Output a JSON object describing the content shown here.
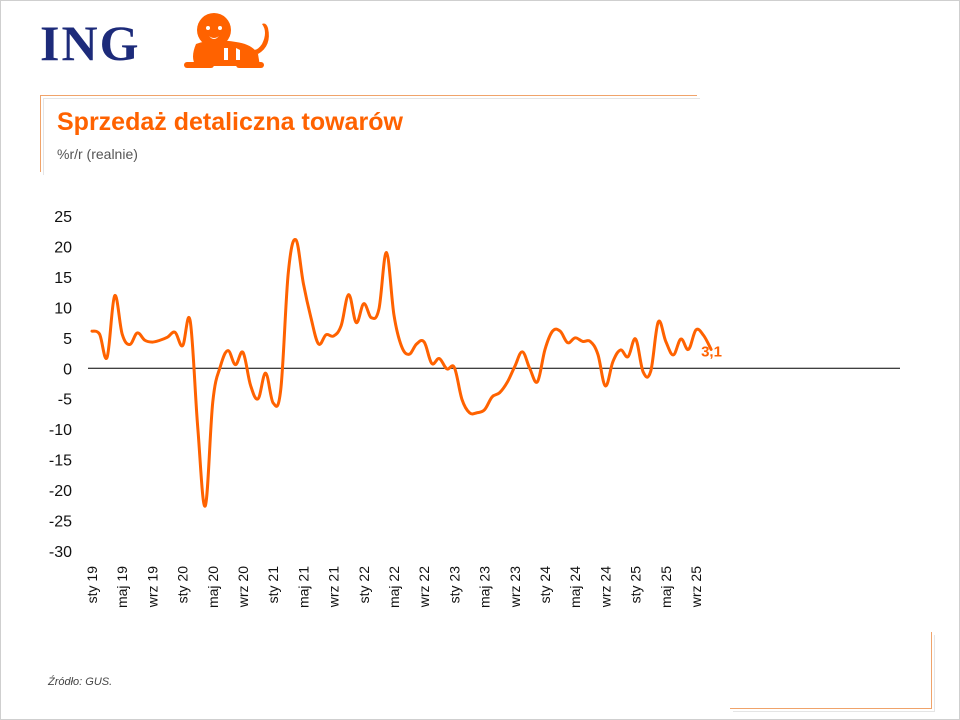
{
  "brand": {
    "logo_text": "ING",
    "logo_icon": "lion-icon",
    "accent": "#ff6200",
    "navy": "#1d2b7a"
  },
  "header": {
    "title": "Sprzedaż detaliczna towarów",
    "subtitle": "%r/r (realnie)"
  },
  "footer": {
    "source": "Źródło: GUS."
  },
  "chart_data": {
    "type": "line",
    "title": "Sprzedaż detaliczna towarów",
    "subtitle": "%r/r (realnie)",
    "xlabel": "",
    "ylabel": "",
    "ylim": [
      -30,
      25
    ],
    "yticks": [
      25,
      20,
      15,
      10,
      5,
      0,
      -5,
      -10,
      -15,
      -20,
      -25,
      -30
    ],
    "x_tick_labels": [
      "sty 19",
      "maj 19",
      "wrz 19",
      "sty 20",
      "maj 20",
      "wrz 20",
      "sty 21",
      "maj 21",
      "wrz 21",
      "sty 22",
      "maj 22",
      "wrz 22",
      "sty 23",
      "maj 23",
      "wrz 23",
      "sty 24",
      "maj 24",
      "wrz 24",
      "sty 25",
      "maj 25",
      "wrz 25"
    ],
    "grid": false,
    "legend": "none",
    "color": "#ff6200",
    "end_label": "3,1",
    "x": [
      "2019-01",
      "2019-02",
      "2019-03",
      "2019-04",
      "2019-05",
      "2019-06",
      "2019-07",
      "2019-08",
      "2019-09",
      "2019-10",
      "2019-11",
      "2019-12",
      "2020-01",
      "2020-02",
      "2020-03",
      "2020-04",
      "2020-05",
      "2020-06",
      "2020-07",
      "2020-08",
      "2020-09",
      "2020-10",
      "2020-11",
      "2020-12",
      "2021-01",
      "2021-02",
      "2021-03",
      "2021-04",
      "2021-05",
      "2021-06",
      "2021-07",
      "2021-08",
      "2021-09",
      "2021-10",
      "2021-11",
      "2021-12",
      "2022-01",
      "2022-02",
      "2022-03",
      "2022-04",
      "2022-05",
      "2022-06",
      "2022-07",
      "2022-08",
      "2022-09",
      "2022-10",
      "2022-11",
      "2022-12",
      "2023-01",
      "2023-02",
      "2023-03",
      "2023-04",
      "2023-05",
      "2023-06",
      "2023-07",
      "2023-08",
      "2023-09",
      "2023-10",
      "2023-11",
      "2023-12",
      "2024-01",
      "2024-02",
      "2024-03",
      "2024-04",
      "2024-05",
      "2024-06",
      "2024-07",
      "2024-08",
      "2024-09",
      "2024-10",
      "2024-11",
      "2024-12",
      "2025-01",
      "2025-02",
      "2025-03",
      "2025-04",
      "2025-05",
      "2025-06",
      "2025-07",
      "2025-08",
      "2025-09",
      "2025-10",
      "2025-11"
    ],
    "series": [
      {
        "values": [
          6.1,
          5.6,
          1.8,
          11.9,
          5.6,
          3.9,
          5.8,
          4.6,
          4.3,
          4.6,
          5.1,
          5.9,
          3.7,
          7.8,
          -9.6,
          -22.6,
          -5.5,
          0.3,
          2.9,
          0.6,
          2.6,
          -2.8,
          -5.0,
          -0.8,
          -5.7,
          -3.5,
          15.7,
          21.1,
          13.9,
          8.3,
          4.0,
          5.5,
          5.3,
          7.0,
          12.1,
          7.5,
          10.6,
          8.3,
          9.7,
          19.0,
          8.7,
          3.6,
          2.3,
          4.0,
          4.3,
          0.8,
          1.6,
          -0.1,
          0.1,
          -5.1,
          -7.3,
          -7.3,
          -6.8,
          -4.7,
          -4.0,
          -2.3,
          0.3,
          2.7,
          -0.1,
          -2.2,
          3.1,
          6.1,
          6.1,
          4.2,
          5.0,
          4.4,
          4.4,
          2.3,
          -2.9,
          1.1,
          3.0,
          1.9,
          4.8,
          -0.6,
          -0.5,
          7.6,
          4.4,
          2.2,
          4.8,
          3.1,
          6.3,
          5.4,
          3.1
        ]
      }
    ]
  }
}
